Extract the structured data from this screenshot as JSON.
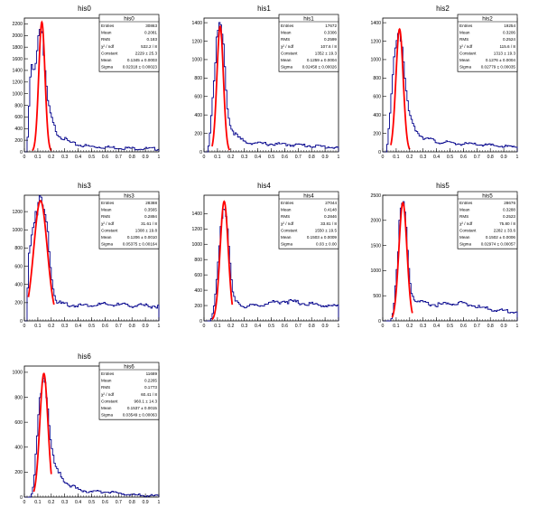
{
  "chart_data": [
    {
      "type": "histogram",
      "title": "his0",
      "xlim": [
        0,
        1
      ],
      "ylim": [
        0,
        2300
      ],
      "x_ticks": [
        "0",
        "0.1",
        "0.2",
        "0.3",
        "0.4",
        "0.5",
        "0.6",
        "0.7",
        "0.8",
        "0.9",
        "1"
      ],
      "y_ticks": [
        0,
        200,
        400,
        600,
        800,
        1000,
        1200,
        1400,
        1600,
        1800,
        2000,
        2200
      ],
      "stats": {
        "title": "his0",
        "rows": [
          [
            "Entries",
            "30863"
          ],
          [
            "Mean",
            "0.2081"
          ],
          [
            "RMS",
            "0.183"
          ],
          [
            "χ² / ndf",
            "532.2 / 8"
          ],
          [
            "Constant",
            "2229 ± 25.3"
          ],
          [
            "Mean",
            "0.1345 ± 0.0003"
          ],
          [
            "Sigma",
            "0.02318 ± 0.00023"
          ]
        ]
      },
      "peak": 2230,
      "mu": 0.13,
      "sigma": 0.023,
      "profile": [
        [
          0,
          0
        ],
        [
          0.02,
          0
        ],
        [
          0.03,
          500
        ],
        [
          0.05,
          1500
        ],
        [
          0.07,
          1300
        ],
        [
          0.09,
          1700
        ],
        [
          0.11,
          2100
        ],
        [
          0.13,
          2230
        ],
        [
          0.15,
          1500
        ],
        [
          0.17,
          900
        ],
        [
          0.19,
          700
        ],
        [
          0.21,
          500
        ],
        [
          0.25,
          300
        ],
        [
          0.3,
          220
        ],
        [
          0.35,
          150
        ],
        [
          0.4,
          120
        ],
        [
          0.5,
          90
        ],
        [
          0.6,
          80
        ],
        [
          0.7,
          70
        ],
        [
          0.8,
          60
        ],
        [
          0.9,
          55
        ],
        [
          1.0,
          50
        ]
      ],
      "fit_range": [
        0.06,
        0.2
      ]
    },
    {
      "type": "histogram",
      "title": "his1",
      "xlim": [
        0,
        1
      ],
      "ylim": [
        0,
        1450
      ],
      "x_ticks": [
        "0",
        "0.1",
        "0.2",
        "0.3",
        "0.4",
        "0.5",
        "0.6",
        "0.7",
        "0.8",
        "0.9",
        "1"
      ],
      "y_ticks": [
        0,
        200,
        400,
        600,
        800,
        1000,
        1200,
        1400
      ],
      "stats": {
        "title": "his1",
        "rows": [
          [
            "Entries",
            "17672"
          ],
          [
            "Mean",
            "0.3306"
          ],
          [
            "RMS",
            "0.2599"
          ],
          [
            "χ² / ndf",
            "107.6 / 8"
          ],
          [
            "Constant",
            "1352 ± 19.3"
          ],
          [
            "Mean",
            "0.1259 ± 0.0004"
          ],
          [
            "Sigma",
            "0.02458 ± 0.00026"
          ]
        ]
      },
      "peak": 1360,
      "mu": 0.12,
      "sigma": 0.024,
      "profile": [
        [
          0,
          0
        ],
        [
          0.03,
          0
        ],
        [
          0.05,
          300
        ],
        [
          0.08,
          900
        ],
        [
          0.1,
          1300
        ],
        [
          0.12,
          1360
        ],
        [
          0.14,
          1200
        ],
        [
          0.16,
          800
        ],
        [
          0.18,
          400
        ],
        [
          0.2,
          260
        ],
        [
          0.25,
          160
        ],
        [
          0.3,
          110
        ],
        [
          0.4,
          90
        ],
        [
          0.5,
          85
        ],
        [
          0.6,
          80
        ],
        [
          0.7,
          75
        ],
        [
          0.8,
          65
        ],
        [
          0.9,
          55
        ],
        [
          1.0,
          45
        ]
      ],
      "fit_range": [
        0.06,
        0.19
      ]
    },
    {
      "type": "histogram",
      "title": "his2",
      "xlim": [
        0,
        1
      ],
      "ylim": [
        0,
        1450
      ],
      "x_ticks": [
        "0",
        "0.1",
        "0.2",
        "0.3",
        "0.4",
        "0.5",
        "0.6",
        "0.7",
        "0.8",
        "0.9",
        "1"
      ],
      "y_ticks": [
        0,
        200,
        400,
        600,
        800,
        1000,
        1200,
        1400
      ],
      "stats": {
        "title": "his2",
        "rows": [
          [
            "Entries",
            "19254"
          ],
          [
            "Mean",
            "0.3206"
          ],
          [
            "RMS",
            "0.2524"
          ],
          [
            "χ² / ndf",
            "115.6 / 8"
          ],
          [
            "Constant",
            "1313 ± 19.3"
          ],
          [
            "Mean",
            "0.1276 ± 0.0004"
          ],
          [
            "Sigma",
            "0.02779 ± 0.00035"
          ]
        ]
      },
      "peak": 1330,
      "mu": 0.125,
      "sigma": 0.027,
      "profile": [
        [
          0,
          0
        ],
        [
          0.03,
          0
        ],
        [
          0.05,
          300
        ],
        [
          0.08,
          900
        ],
        [
          0.1,
          1250
        ],
        [
          0.13,
          1330
        ],
        [
          0.15,
          1100
        ],
        [
          0.17,
          700
        ],
        [
          0.19,
          450
        ],
        [
          0.21,
          350
        ],
        [
          0.25,
          230
        ],
        [
          0.3,
          160
        ],
        [
          0.4,
          110
        ],
        [
          0.5,
          95
        ],
        [
          0.6,
          85
        ],
        [
          0.7,
          80
        ],
        [
          0.8,
          70
        ],
        [
          0.9,
          60
        ],
        [
          1.0,
          50
        ]
      ],
      "fit_range": [
        0.06,
        0.2
      ]
    },
    {
      "type": "histogram",
      "title": "his3",
      "xlim": [
        0,
        1
      ],
      "ylim": [
        0,
        1380
      ],
      "x_ticks": [
        "0",
        "0.1",
        "0.2",
        "0.3",
        "0.4",
        "0.5",
        "0.6",
        "0.7",
        "0.8",
        "0.9",
        "1"
      ],
      "y_ticks": [
        0,
        200,
        400,
        600,
        800,
        1000,
        1200
      ],
      "stats": {
        "title": "his3",
        "rows": [
          [
            "Entries",
            "28388"
          ],
          [
            "Mean",
            "0.3565"
          ],
          [
            "RMS",
            "0.2894"
          ],
          [
            "χ² / ndf",
            "31.61 / 8"
          ],
          [
            "Constant",
            "1308 ± 19.8"
          ],
          [
            "Mean",
            "0.1206 ± 0.0010"
          ],
          [
            "Sigma",
            "0.05375 ± 0.00164"
          ]
        ]
      },
      "peak": 1320,
      "mu": 0.12,
      "sigma": 0.05,
      "profile": [
        [
          0,
          0
        ],
        [
          0.02,
          0
        ],
        [
          0.03,
          700
        ],
        [
          0.05,
          900
        ],
        [
          0.08,
          1200
        ],
        [
          0.12,
          1320
        ],
        [
          0.15,
          1200
        ],
        [
          0.18,
          900
        ],
        [
          0.2,
          550
        ],
        [
          0.22,
          300
        ],
        [
          0.25,
          200
        ],
        [
          0.3,
          180
        ],
        [
          0.4,
          170
        ],
        [
          0.5,
          175
        ],
        [
          0.6,
          180
        ],
        [
          0.7,
          175
        ],
        [
          0.8,
          170
        ],
        [
          0.9,
          165
        ],
        [
          1.0,
          160
        ]
      ],
      "fit_range": [
        0.03,
        0.22
      ]
    },
    {
      "type": "histogram",
      "title": "his4",
      "xlim": [
        0,
        1
      ],
      "ylim": [
        0,
        1640
      ],
      "x_ticks": [
        "0",
        "0.1",
        "0.2",
        "0.3",
        "0.4",
        "0.5",
        "0.6",
        "0.7",
        "0.8",
        "0.9",
        "1"
      ],
      "y_ticks": [
        0,
        200,
        400,
        600,
        800,
        1000,
        1200,
        1400
      ],
      "stats": {
        "title": "his4",
        "rows": [
          [
            "Entries",
            "27044"
          ],
          [
            "Mean",
            "0.4148"
          ],
          [
            "RMS",
            "0.2846"
          ],
          [
            "χ² / ndf",
            "33.81 / 8"
          ],
          [
            "Constant",
            "1550 ± 19.5"
          ],
          [
            "Mean",
            "0.1503 ± 0.0009"
          ],
          [
            "Sigma",
            "0.03 ± 0.00"
          ]
        ]
      },
      "peak": 1560,
      "mu": 0.15,
      "sigma": 0.03,
      "profile": [
        [
          0,
          0
        ],
        [
          0.05,
          0
        ],
        [
          0.07,
          100
        ],
        [
          0.1,
          600
        ],
        [
          0.13,
          1400
        ],
        [
          0.15,
          1560
        ],
        [
          0.17,
          1400
        ],
        [
          0.19,
          800
        ],
        [
          0.21,
          400
        ],
        [
          0.23,
          250
        ],
        [
          0.3,
          190
        ],
        [
          0.4,
          200
        ],
        [
          0.5,
          240
        ],
        [
          0.6,
          260
        ],
        [
          0.7,
          240
        ],
        [
          0.8,
          220
        ],
        [
          0.9,
          200
        ],
        [
          1.0,
          190
        ]
      ],
      "fit_range": [
        0.06,
        0.21
      ]
    },
    {
      "type": "histogram",
      "title": "his5",
      "xlim": [
        0,
        1
      ],
      "ylim": [
        0,
        2500
      ],
      "x_ticks": [
        "0",
        "0.1",
        "0.2",
        "0.3",
        "0.4",
        "0.5",
        "0.6",
        "0.7",
        "0.8",
        "0.9",
        "1"
      ],
      "y_ticks": [
        0,
        500,
        1000,
        1500,
        2000,
        2500
      ],
      "stats": {
        "title": "his5",
        "rows": [
          [
            "Entries",
            "28676"
          ],
          [
            "Mean",
            "0.3288"
          ],
          [
            "RMS",
            "0.2523"
          ],
          [
            "χ² / ndf",
            "75.80 / 8"
          ],
          [
            "Constant",
            "2282 ± 33.6"
          ],
          [
            "Mean",
            "0.1502 ± 0.0006"
          ],
          [
            "Sigma",
            "0.02974 ± 0.00057"
          ]
        ]
      },
      "peak": 2350,
      "mu": 0.15,
      "sigma": 0.03,
      "profile": [
        [
          0,
          0
        ],
        [
          0.06,
          0
        ],
        [
          0.08,
          200
        ],
        [
          0.11,
          1200
        ],
        [
          0.13,
          2100
        ],
        [
          0.15,
          2350
        ],
        [
          0.17,
          2000
        ],
        [
          0.19,
          1200
        ],
        [
          0.21,
          600
        ],
        [
          0.24,
          400
        ],
        [
          0.3,
          350
        ],
        [
          0.4,
          320
        ],
        [
          0.5,
          340
        ],
        [
          0.6,
          360
        ],
        [
          0.7,
          280
        ],
        [
          0.8,
          230
        ],
        [
          0.9,
          200
        ],
        [
          1.0,
          180
        ]
      ],
      "fit_range": [
        0.07,
        0.22
      ]
    },
    {
      "type": "histogram",
      "title": "his6",
      "xlim": [
        0,
        1
      ],
      "ylim": [
        0,
        1050
      ],
      "x_ticks": [
        "0",
        "0.1",
        "0.2",
        "0.3",
        "0.4",
        "0.5",
        "0.6",
        "0.7",
        "0.8",
        "0.9",
        "1"
      ],
      "y_ticks": [
        0,
        200,
        400,
        600,
        800,
        1000
      ],
      "stats": {
        "title": "his6",
        "rows": [
          [
            "Entries",
            "11689"
          ],
          [
            "Mean",
            "0.2265"
          ],
          [
            "RMS",
            "0.1773"
          ],
          [
            "χ² / ndf",
            "60.41 / 8"
          ],
          [
            "Constant",
            "960.1 ± 14.3"
          ],
          [
            "Mean",
            "0.1537 ± 0.0015"
          ],
          [
            "Sigma",
            "0.03549 ± 0.00063"
          ]
        ]
      },
      "peak": 990,
      "mu": 0.145,
      "sigma": 0.03,
      "profile": [
        [
          0,
          0
        ],
        [
          0.05,
          0
        ],
        [
          0.07,
          100
        ],
        [
          0.09,
          400
        ],
        [
          0.11,
          700
        ],
        [
          0.13,
          900
        ],
        [
          0.145,
          990
        ],
        [
          0.16,
          900
        ],
        [
          0.18,
          650
        ],
        [
          0.2,
          400
        ],
        [
          0.22,
          280
        ],
        [
          0.25,
          200
        ],
        [
          0.3,
          130
        ],
        [
          0.35,
          90
        ],
        [
          0.4,
          60
        ],
        [
          0.5,
          40
        ],
        [
          0.6,
          45
        ],
        [
          0.7,
          30
        ],
        [
          0.8,
          20
        ],
        [
          0.9,
          12
        ],
        [
          1.0,
          8
        ]
      ],
      "fit_range": [
        0.07,
        0.2
      ]
    }
  ],
  "colors": {
    "histogram": "#00008b",
    "fit": "#ff0000",
    "frame": "#000000"
  }
}
